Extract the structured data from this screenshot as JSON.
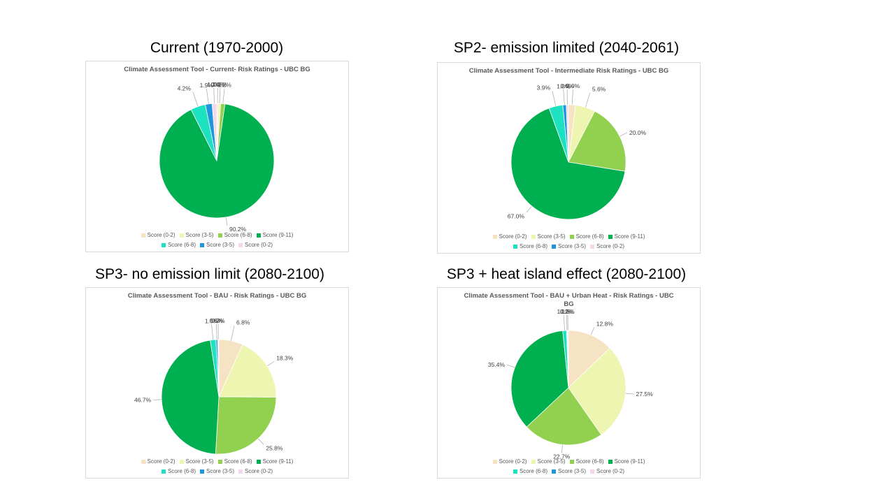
{
  "headings": [
    "Current (1970-2000)",
    "SP2- emission limited (2040-2061)",
    "SP3- no emission limit (2080-2100)",
    "SP3 + heat island effect (2080-2100)"
  ],
  "chart_data": [
    {
      "type": "pie",
      "title": "Climate Assessment Tool - Current- Risk Ratings - UBC BG",
      "categories": [
        "Score (0-2)",
        "Score (3-5)",
        "Score (6-8)",
        "Score (9-11)",
        "Score  (6-8)",
        "Score  (3-5)",
        "Score  (0-2)"
      ],
      "values": [
        0.4,
        0.7,
        1.2,
        90.2,
        4.2,
        1.9,
        1.3
      ],
      "labels": [
        "0.4%",
        "0.7%",
        "1.2%",
        "90.2%",
        "4.2%",
        "1.9%",
        "1.3%"
      ],
      "colors": [
        "#f6e3c3",
        "#eef5b0",
        "#92d050",
        "#00b050",
        "#1de2c1",
        "#1e96dc",
        "#f2d8ea"
      ]
    },
    {
      "type": "pie",
      "title": "Climate Assessment Tool - Intermediate Risk Ratings - UBC BG",
      "categories": [
        "Score (0-2)",
        "Score (3-5)",
        "Score (6-8)",
        "Score (9-11)",
        "Score  (6-8)",
        "Score  (3-5)",
        "Score  (0-2)"
      ],
      "values": [
        2.0,
        5.6,
        20.0,
        67.0,
        3.9,
        1.0,
        0.6
      ],
      "labels": [
        "2.0%",
        "5.6%",
        "20.0%",
        "67.0%",
        "3.9%",
        "1.0%",
        "0.6%"
      ],
      "colors": [
        "#f6e3c3",
        "#eef5b0",
        "#92d050",
        "#00b050",
        "#1de2c1",
        "#1e96dc",
        "#f2d8ea"
      ]
    },
    {
      "type": "pie",
      "title": "Climate Assessment Tool - BAU - Risk Ratings - UBC BG",
      "categories": [
        "Score (0-2)",
        "Score (3-5)",
        "Score (6-8)",
        "Score (9-11)",
        "Score  (6-8)",
        "Score  (3-5)",
        "Score  (0-2)"
      ],
      "values": [
        6.8,
        18.3,
        25.8,
        46.7,
        1.6,
        0.5,
        0.3
      ],
      "labels": [
        "6.8%",
        "18.3%",
        "25.8%",
        "46.7%",
        "1.6%",
        "0.5%",
        "0.3%"
      ],
      "colors": [
        "#f6e3c3",
        "#eef5b0",
        "#92d050",
        "#00b050",
        "#1de2c1",
        "#1e96dc",
        "#f2d8ea"
      ]
    },
    {
      "type": "pie",
      "title": "Climate Assessment Tool - BAU + Urban Heat - Risk Ratings - UBC BG",
      "categories": [
        "Score (0-2)",
        "Score (3-5)",
        "Score (6-8)",
        "Score (9-11)",
        "Score  (6-8)",
        "Score  (3-5)",
        "Score  (0-2)"
      ],
      "values": [
        12.8,
        27.5,
        22.7,
        35.4,
        1.1,
        0.2,
        0.3
      ],
      "labels": [
        "12.8%",
        "27.5%",
        "22.7%",
        "35.4%",
        "1.1%",
        "0.2%",
        "0.3%"
      ],
      "colors": [
        "#f6e3c3",
        "#eef5b0",
        "#92d050",
        "#00b050",
        "#1de2c1",
        "#1e96dc",
        "#f2d8ea"
      ]
    }
  ]
}
